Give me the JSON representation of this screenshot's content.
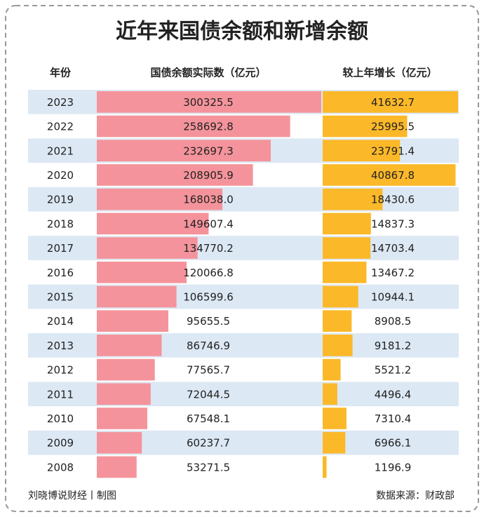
{
  "chart_data": {
    "type": "bar",
    "title": "近年来国债余额和新增余额",
    "category_header": "年份",
    "categories": [
      "2023",
      "2022",
      "2021",
      "2020",
      "2019",
      "2018",
      "2017",
      "2016",
      "2015",
      "2014",
      "2013",
      "2012",
      "2011",
      "2010",
      "2009",
      "2008"
    ],
    "series": [
      {
        "name": "国债余额实际数（亿元）",
        "color": "#f4939b",
        "values": [
          300325.5,
          258692.8,
          232697.3,
          208905.9,
          168038.0,
          149607.4,
          134770.2,
          120066.8,
          106599.6,
          95655.5,
          86746.9,
          77565.7,
          72044.5,
          67548.1,
          60237.7,
          53271.5
        ],
        "value_labels": [
          "300325.5",
          "258692.8",
          "232697.3",
          "208905.9",
          "168038.0",
          "149607.4",
          "134770.2",
          "120066.8",
          "106599.6",
          "95655.5",
          "86746.9",
          "77565.7",
          "72044.5",
          "67548.1",
          "60237.7",
          "53271.5"
        ]
      },
      {
        "name": "较上年增长（亿元）",
        "color": "#fbb829",
        "values": [
          41632.7,
          25995.5,
          23791.4,
          40867.8,
          18430.6,
          14837.3,
          14703.4,
          13467.2,
          10944.1,
          8908.5,
          9181.2,
          5521.2,
          4496.4,
          7310.4,
          6966.1,
          1196.9
        ],
        "value_labels": [
          "41632.7",
          "25995.5",
          "23791.4",
          "40867.8",
          "18430.6",
          "14837.3",
          "14703.4",
          "13467.2",
          "10944.1",
          "8908.5",
          "9181.2",
          "5521.2",
          "4496.4",
          "7310.4",
          "6966.1",
          "1196.9"
        ]
      }
    ],
    "stripe_color": "#dce8f4",
    "credit": "刘晓博说财经丨制图",
    "source": "数据来源：财政部"
  }
}
